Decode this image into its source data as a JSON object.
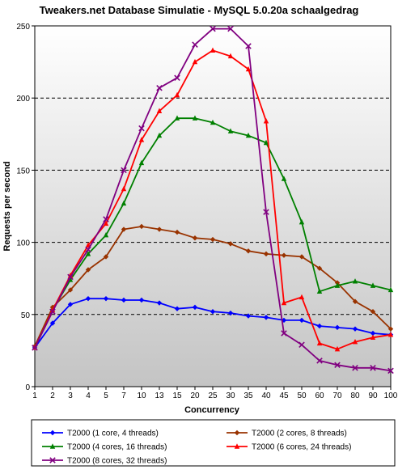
{
  "chart_data": {
    "type": "line",
    "title": "Tweakers.net Database Simulatie - MySQL 5.0.20a schaalgedrag",
    "xlabel": "Concurrency",
    "ylabel": "Requests per second",
    "ylim": [
      0,
      250
    ],
    "yticks": [
      "0",
      "50",
      "100",
      "150",
      "200",
      "250"
    ],
    "grid": "horizontal-dashed",
    "legend_position": "bottom",
    "x": [
      "1",
      "2",
      "3",
      "4",
      "5",
      "7",
      "10",
      "13",
      "15",
      "20",
      "25",
      "30",
      "35",
      "40",
      "45",
      "50",
      "60",
      "70",
      "80",
      "90",
      "100"
    ],
    "series": [
      {
        "name": "T2000 (1 core, 4 threads)",
        "color": "#0000ff",
        "marker": "diamond",
        "values": [
          27,
          44,
          57,
          61,
          61,
          60,
          60,
          58,
          54,
          55,
          52,
          51,
          49,
          48,
          46,
          46,
          42,
          41,
          40,
          37,
          36
        ]
      },
      {
        "name": "T2000 (2 cores, 8 threads)",
        "color": "#993300",
        "marker": "diamond",
        "values": [
          28,
          55,
          67,
          81,
          90,
          109,
          111,
          109,
          107,
          103,
          102,
          99,
          94,
          92,
          91,
          90,
          82,
          72,
          59,
          52,
          40
        ]
      },
      {
        "name": "T2000 (4 cores, 16 threads)",
        "color": "#008000",
        "marker": "triangle",
        "values": [
          27,
          53,
          74,
          92,
          105,
          127,
          155,
          174,
          186,
          186,
          183,
          177,
          174,
          169,
          144,
          114,
          66,
          70,
          73,
          70,
          67
        ]
      },
      {
        "name": "T2000 (6 cores, 24 threads)",
        "color": "#ff0000",
        "marker": "triangle",
        "values": [
          27,
          53,
          77,
          98,
          113,
          137,
          171,
          191,
          202,
          225,
          233,
          229,
          220,
          184,
          58,
          62,
          30,
          26,
          31,
          34,
          36
        ]
      },
      {
        "name": "T2000 (8 cores, 32 threads)",
        "color": "#800080",
        "marker": "cross",
        "values": [
          27,
          52,
          76,
          95,
          116,
          150,
          179,
          207,
          214,
          237,
          248,
          248,
          236,
          121,
          37,
          29,
          18,
          15,
          13,
          13,
          11
        ]
      }
    ]
  }
}
